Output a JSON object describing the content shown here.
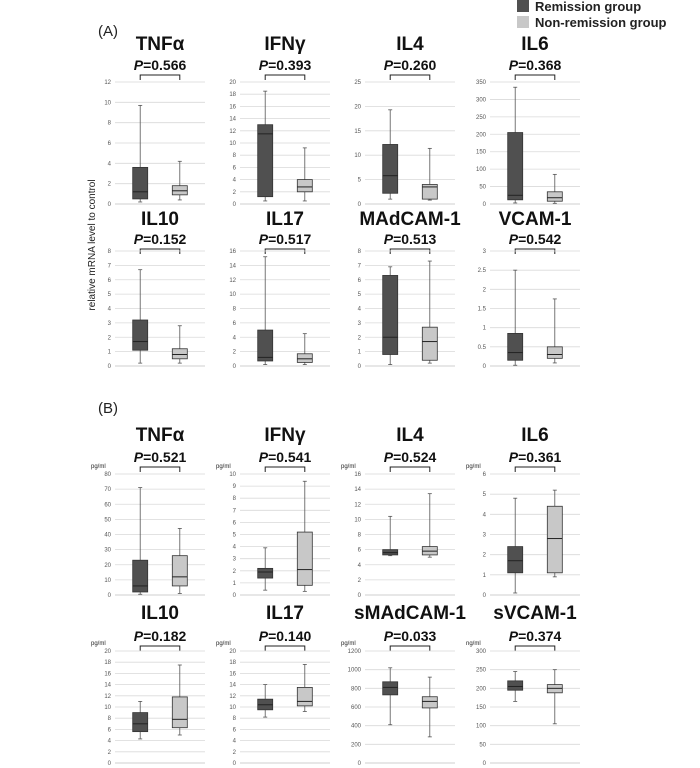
{
  "panel_labels": [
    "(A)",
    "(B)"
  ],
  "y_axis_label": "relative mRNA level to control",
  "legend": [
    {
      "label": "Remission group",
      "color": "#505050"
    },
    {
      "label": "Non-remission group",
      "color": "#c8c8c8"
    }
  ],
  "colors": {
    "remission": "#505050",
    "non_remission": "#c8c8c8",
    "grid": "#d9d9d9"
  },
  "chart_data": [
    {
      "type": "box",
      "panel": "(A)",
      "title": "TNFα",
      "p_label": "P",
      "p_value": "=0.566",
      "unit": "",
      "ylim": [
        0,
        12
      ],
      "yticks": [
        0,
        2,
        4,
        6,
        8,
        10,
        12
      ],
      "boxes": [
        {
          "group": "Remission group",
          "min": 0.2,
          "q1": 0.5,
          "median": 1.2,
          "q3": 3.6,
          "max": 9.7
        },
        {
          "group": "Non-remission group",
          "min": 0.4,
          "q1": 0.9,
          "median": 1.3,
          "q3": 1.8,
          "max": 4.2
        }
      ]
    },
    {
      "type": "box",
      "panel": "(A)",
      "title": "IFNγ",
      "p_label": "P",
      "p_value": "=0.393",
      "unit": "",
      "ylim": [
        0,
        20
      ],
      "yticks": [
        0,
        2,
        4,
        6,
        8,
        10,
        12,
        14,
        16,
        18,
        20
      ],
      "boxes": [
        {
          "group": "Remission group",
          "min": 0.5,
          "q1": 1.2,
          "median": 11.5,
          "q3": 13.0,
          "max": 18.5
        },
        {
          "group": "Non-remission group",
          "min": 0.5,
          "q1": 2.0,
          "median": 2.8,
          "q3": 4.0,
          "max": 9.2
        }
      ]
    },
    {
      "type": "box",
      "panel": "(A)",
      "title": "IL4",
      "p_label": "P",
      "p_value": "=0.260",
      "unit": "",
      "ylim": [
        0,
        25
      ],
      "yticks": [
        0,
        5,
        10,
        15,
        20,
        25
      ],
      "boxes": [
        {
          "group": "Remission group",
          "min": 1.0,
          "q1": 2.2,
          "median": 5.8,
          "q3": 12.2,
          "max": 19.3
        },
        {
          "group": "Non-remission group",
          "min": 0.8,
          "q1": 1.0,
          "median": 3.5,
          "q3": 4.0,
          "max": 11.4
        }
      ]
    },
    {
      "type": "box",
      "panel": "(A)",
      "title": "IL6",
      "p_label": "P",
      "p_value": "=0.368",
      "unit": "",
      "ylim": [
        0,
        350
      ],
      "yticks": [
        0,
        50,
        100,
        150,
        200,
        250,
        300,
        350
      ],
      "boxes": [
        {
          "group": "Remission group",
          "min": 3,
          "q1": 12,
          "median": 25,
          "q3": 205,
          "max": 335
        },
        {
          "group": "Non-remission group",
          "min": 2,
          "q1": 8,
          "median": 18,
          "q3": 35,
          "max": 85
        }
      ]
    },
    {
      "type": "box",
      "panel": "(A)",
      "title": "IL10",
      "p_label": "P",
      "p_value": "=0.152",
      "unit": "",
      "ylim": [
        0,
        8
      ],
      "yticks": [
        0,
        1,
        2,
        3,
        4,
        5,
        6,
        7,
        8
      ],
      "boxes": [
        {
          "group": "Remission group",
          "min": 0.2,
          "q1": 1.1,
          "median": 1.7,
          "q3": 3.2,
          "max": 6.7
        },
        {
          "group": "Non-remission group",
          "min": 0.2,
          "q1": 0.5,
          "median": 0.8,
          "q3": 1.2,
          "max": 2.8
        }
      ]
    },
    {
      "type": "box",
      "panel": "(A)",
      "title": "IL17",
      "p_label": "P",
      "p_value": "=0.517",
      "unit": "",
      "ylim": [
        0,
        16
      ],
      "yticks": [
        0,
        2,
        4,
        6,
        8,
        10,
        12,
        14,
        16
      ],
      "boxes": [
        {
          "group": "Remission group",
          "min": 0.2,
          "q1": 0.7,
          "median": 1.2,
          "q3": 5.0,
          "max": 15.2
        },
        {
          "group": "Non-remission group",
          "min": 0.2,
          "q1": 0.5,
          "median": 1.0,
          "q3": 1.7,
          "max": 4.5
        }
      ]
    },
    {
      "type": "box",
      "panel": "(A)",
      "title": "MAdCAM-1",
      "p_label": "P",
      "p_value": "=0.513",
      "unit": "",
      "ylim": [
        0,
        8
      ],
      "yticks": [
        0,
        1,
        2,
        3,
        4,
        5,
        6,
        7,
        8
      ],
      "boxes": [
        {
          "group": "Remission group",
          "min": 0.1,
          "q1": 0.8,
          "median": 2.0,
          "q3": 6.3,
          "max": 6.9
        },
        {
          "group": "Non-remission group",
          "min": 0.2,
          "q1": 0.4,
          "median": 1.7,
          "q3": 2.7,
          "max": 7.3
        }
      ]
    },
    {
      "type": "box",
      "panel": "(A)",
      "title": "VCAM-1",
      "p_label": "P",
      "p_value": "=0.542",
      "unit": "",
      "ylim": [
        0,
        3
      ],
      "yticks": [
        0,
        0.5,
        1,
        1.5,
        2,
        2.5,
        3
      ],
      "boxes": [
        {
          "group": "Remission group",
          "min": 0.02,
          "q1": 0.15,
          "median": 0.35,
          "q3": 0.85,
          "max": 2.5
        },
        {
          "group": "Non-remission group",
          "min": 0.08,
          "q1": 0.2,
          "median": 0.3,
          "q3": 0.5,
          "max": 1.75
        }
      ]
    },
    {
      "type": "box",
      "panel": "(B)",
      "title": "TNFα",
      "p_label": "P",
      "p_value": "=0.521",
      "unit": "pg/ml",
      "ylim": [
        0,
        80
      ],
      "yticks": [
        0,
        10,
        20,
        30,
        40,
        50,
        60,
        70,
        80
      ],
      "boxes": [
        {
          "group": "Remission group",
          "min": 0.5,
          "q1": 2,
          "median": 6,
          "q3": 23,
          "max": 71
        },
        {
          "group": "Non-remission group",
          "min": 1,
          "q1": 6,
          "median": 12,
          "q3": 26,
          "max": 44
        }
      ]
    },
    {
      "type": "box",
      "panel": "(B)",
      "title": "IFNγ",
      "p_label": "P",
      "p_value": "=0.541",
      "unit": "pg/ml",
      "ylim": [
        0,
        10
      ],
      "yticks": [
        0,
        1,
        2,
        3,
        4,
        5,
        6,
        7,
        8,
        9,
        10
      ],
      "boxes": [
        {
          "group": "Remission group",
          "min": 0.4,
          "q1": 1.4,
          "median": 1.9,
          "q3": 2.2,
          "max": 3.9
        },
        {
          "group": "Non-remission group",
          "min": 0.3,
          "q1": 0.8,
          "median": 2.1,
          "q3": 5.2,
          "max": 9.4
        }
      ]
    },
    {
      "type": "box",
      "panel": "(B)",
      "title": "IL4",
      "p_label": "P",
      "p_value": "=0.524",
      "unit": "pg/ml",
      "ylim": [
        0,
        16
      ],
      "yticks": [
        0,
        2,
        4,
        6,
        8,
        10,
        12,
        14,
        16
      ],
      "boxes": [
        {
          "group": "Remission group",
          "min": 5.2,
          "q1": 5.3,
          "median": 5.6,
          "q3": 6.0,
          "max": 10.4
        },
        {
          "group": "Non-remission group",
          "min": 5.0,
          "q1": 5.3,
          "median": 5.8,
          "q3": 6.4,
          "max": 13.4
        }
      ]
    },
    {
      "type": "box",
      "panel": "(B)",
      "title": "IL6",
      "p_label": "P",
      "p_value": "=0.361",
      "unit": "pg/ml",
      "ylim": [
        0,
        6
      ],
      "yticks": [
        0,
        1,
        2,
        3,
        4,
        5,
        6
      ],
      "boxes": [
        {
          "group": "Remission group",
          "min": 0.1,
          "q1": 1.1,
          "median": 1.7,
          "q3": 2.4,
          "max": 4.8
        },
        {
          "group": "Non-remission group",
          "min": 0.9,
          "q1": 1.1,
          "median": 2.8,
          "q3": 4.4,
          "max": 5.2
        }
      ]
    },
    {
      "type": "box",
      "panel": "(B)",
      "title": "IL10",
      "p_label": "P",
      "p_value": "=0.182",
      "unit": "pg/ml",
      "ylim": [
        0,
        20
      ],
      "yticks": [
        0,
        2,
        4,
        6,
        8,
        10,
        12,
        14,
        16,
        18,
        20
      ],
      "boxes": [
        {
          "group": "Remission group",
          "min": 4.3,
          "q1": 5.6,
          "median": 7.0,
          "q3": 9.0,
          "max": 11.0
        },
        {
          "group": "Non-remission group",
          "min": 5.0,
          "q1": 6.3,
          "median": 7.8,
          "q3": 11.8,
          "max": 17.5
        }
      ]
    },
    {
      "type": "box",
      "panel": "(B)",
      "title": "IL17",
      "p_label": "P",
      "p_value": "=0.140",
      "unit": "pg/ml",
      "ylim": [
        0,
        20
      ],
      "yticks": [
        0,
        2,
        4,
        6,
        8,
        10,
        12,
        14,
        16,
        18,
        20
      ],
      "boxes": [
        {
          "group": "Remission group",
          "min": 8.2,
          "q1": 9.5,
          "median": 10.4,
          "q3": 11.4,
          "max": 14.0
        },
        {
          "group": "Non-remission group",
          "min": 9.2,
          "q1": 10.2,
          "median": 11.0,
          "q3": 13.5,
          "max": 17.6
        }
      ]
    },
    {
      "type": "box",
      "panel": "(B)",
      "title": "sMAdCAM-1",
      "p_label": "P",
      "p_value": "=0.033",
      "unit": "pg/ml",
      "ylim": [
        0,
        1200
      ],
      "yticks": [
        0,
        200,
        400,
        600,
        800,
        1000,
        1200
      ],
      "boxes": [
        {
          "group": "Remission group",
          "min": 410,
          "q1": 730,
          "median": 810,
          "q3": 870,
          "max": 1020
        },
        {
          "group": "Non-remission group",
          "min": 280,
          "q1": 590,
          "median": 660,
          "q3": 710,
          "max": 920
        }
      ]
    },
    {
      "type": "box",
      "panel": "(B)",
      "title": "sVCAM-1",
      "p_label": "P",
      "p_value": "=0.374",
      "unit": "ng/ml",
      "ylim": [
        0,
        300
      ],
      "yticks": [
        0,
        50,
        100,
        150,
        200,
        250,
        300
      ],
      "boxes": [
        {
          "group": "Remission group",
          "min": 165,
          "q1": 195,
          "median": 205,
          "q3": 220,
          "max": 245
        },
        {
          "group": "Non-remission group",
          "min": 105,
          "q1": 188,
          "median": 200,
          "q3": 210,
          "max": 250
        }
      ]
    }
  ]
}
